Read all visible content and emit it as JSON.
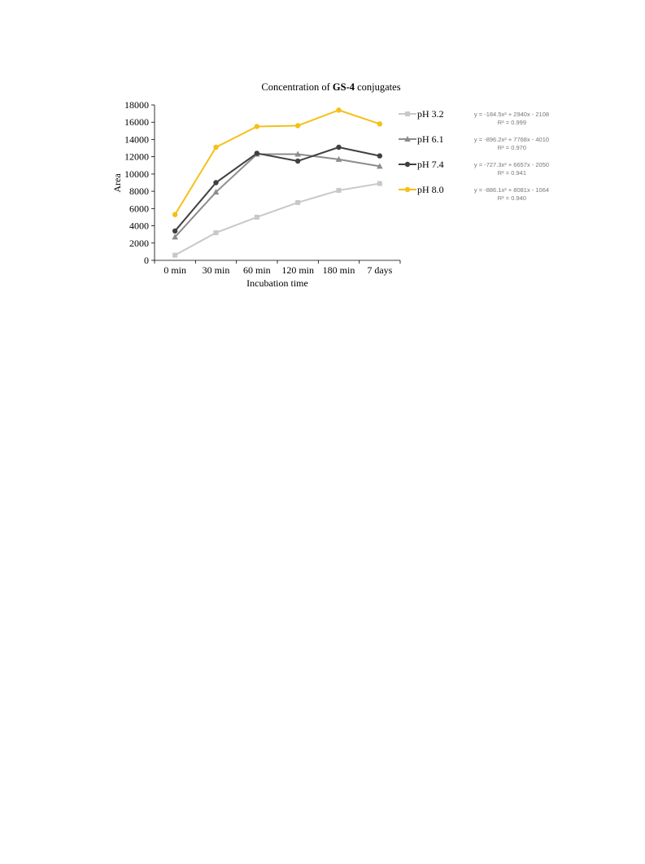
{
  "chart_data": {
    "type": "line",
    "title_prefix": "Concentration of ",
    "title_bold": "GS-4",
    "title_suffix": " conjugates",
    "xlabel": "Incubation time",
    "ylabel": "Area",
    "categories": [
      "0 min",
      "30 min",
      "60 min",
      "120 min",
      "180 min",
      "7 days"
    ],
    "ylim": [
      0,
      18000
    ],
    "yticks": [
      "0",
      "2000",
      "4000",
      "6000",
      "8000",
      "10000",
      "12000",
      "14000",
      "16000",
      "18000"
    ],
    "grid": false,
    "legend_position": "right",
    "series": [
      {
        "name": "pH 3.2",
        "color": "#c8c8c8",
        "marker": "square",
        "values": [
          600,
          3200,
          5000,
          6700,
          8100,
          8900
        ],
        "equation": "y = -184.5x² + 2940x - 2108",
        "r2": "R² = 0.999"
      },
      {
        "name": "pH 6.1",
        "color": "#8c8c8c",
        "marker": "triangle",
        "values": [
          2700,
          7900,
          12300,
          12300,
          11700,
          10900
        ],
        "equation": "y = -896.2x² + 7768x - 4010",
        "r2": "R² = 0.970"
      },
      {
        "name": "pH 7.4",
        "color": "#404040",
        "marker": "circle",
        "values": [
          3400,
          9000,
          12400,
          11500,
          13100,
          12100
        ],
        "equation": "y = -727.3x² + 6657x - 2050",
        "r2": "R² = 0.941"
      },
      {
        "name": "pH 8.0",
        "color": "#f5c016",
        "marker": "circle",
        "values": [
          5300,
          13100,
          15500,
          15600,
          17400,
          15800
        ],
        "equation": "y = -886.1x² + 8081x - 1064",
        "r2": "R² = 0.940"
      }
    ]
  }
}
